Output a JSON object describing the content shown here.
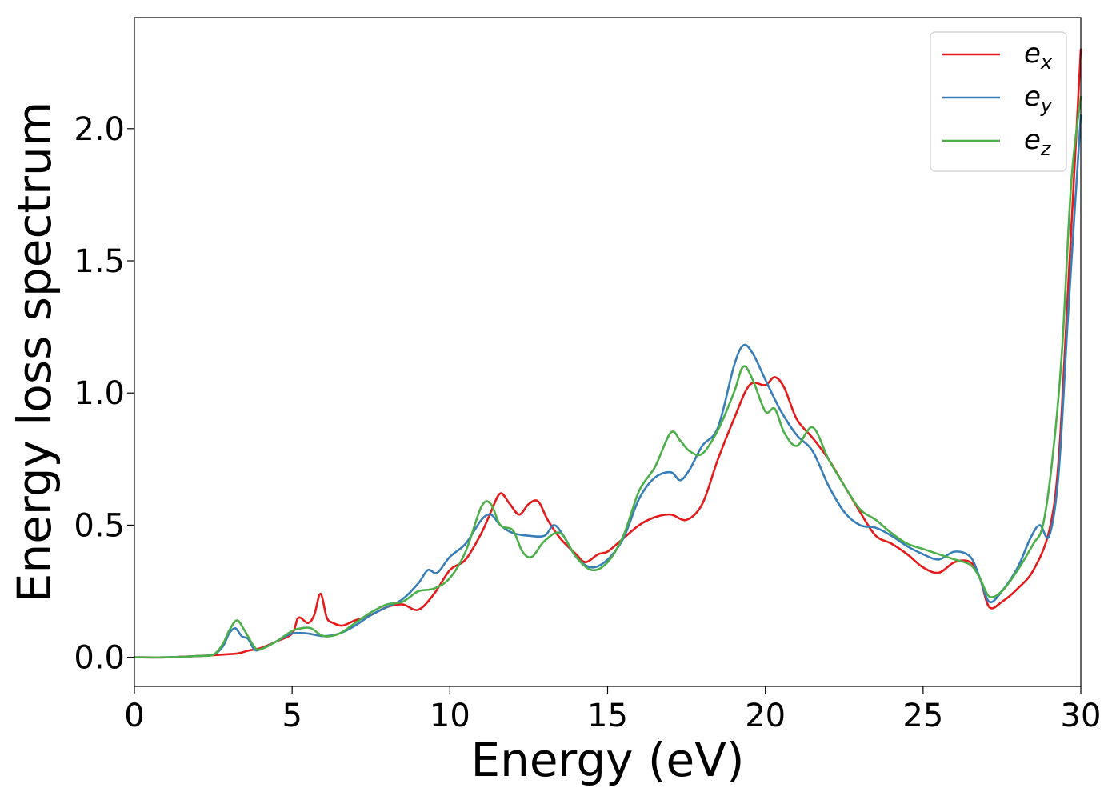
{
  "chart_data": {
    "type": "line",
    "title": "",
    "xlabel": "Energy (eV)",
    "ylabel": "Energy loss spectrum",
    "xlim": [
      0,
      30
    ],
    "ylim": [
      -0.11,
      2.42
    ],
    "xticks": [
      0,
      5,
      10,
      15,
      20,
      25,
      30
    ],
    "xtick_labels": [
      "0",
      "5",
      "10",
      "15",
      "20",
      "25",
      "30"
    ],
    "yticks": [
      0.0,
      0.5,
      1.0,
      1.5,
      2.0
    ],
    "ytick_labels": [
      "0.0",
      "0.5",
      "1.0",
      "1.5",
      "2.0"
    ],
    "grid": false,
    "legend_position": "top-right",
    "series": [
      {
        "name": "e_x",
        "legend_base": "e",
        "legend_sub": "x",
        "color": "#e41a1c",
        "x": [
          0,
          1,
          2,
          2.5,
          3.0,
          3.3,
          3.6,
          4.0,
          4.5,
          5.0,
          5.2,
          5.5,
          5.7,
          5.9,
          6.1,
          6.3,
          6.6,
          7.0,
          7.5,
          8.0,
          8.5,
          9.0,
          9.5,
          10.0,
          10.5,
          11.0,
          11.3,
          11.6,
          11.9,
          12.2,
          12.5,
          12.8,
          13.1,
          13.5,
          14.0,
          14.3,
          14.7,
          15.0,
          15.5,
          16.0,
          16.5,
          17.0,
          17.5,
          18.0,
          18.5,
          19.0,
          19.5,
          20.0,
          20.3,
          20.6,
          21.0,
          21.5,
          22.0,
          22.5,
          23.0,
          23.5,
          24.0,
          24.5,
          25.0,
          25.5,
          26.0,
          26.5,
          26.8,
          27.1,
          27.5,
          28.0,
          28.5,
          29.0,
          29.3,
          29.6,
          30.0
        ],
        "y": [
          0.0,
          0.0,
          0.005,
          0.008,
          0.012,
          0.015,
          0.025,
          0.035,
          0.06,
          0.09,
          0.15,
          0.13,
          0.16,
          0.24,
          0.15,
          0.13,
          0.12,
          0.14,
          0.16,
          0.19,
          0.2,
          0.18,
          0.24,
          0.33,
          0.37,
          0.47,
          0.55,
          0.62,
          0.58,
          0.54,
          0.58,
          0.59,
          0.52,
          0.45,
          0.39,
          0.36,
          0.39,
          0.4,
          0.45,
          0.5,
          0.53,
          0.54,
          0.52,
          0.58,
          0.75,
          0.9,
          1.03,
          1.03,
          1.06,
          1.02,
          0.9,
          0.83,
          0.75,
          0.65,
          0.55,
          0.46,
          0.43,
          0.39,
          0.34,
          0.32,
          0.36,
          0.36,
          0.3,
          0.19,
          0.21,
          0.26,
          0.33,
          0.48,
          0.75,
          1.4,
          2.3
        ]
      },
      {
        "name": "e_y",
        "legend_base": "e",
        "legend_sub": "y",
        "color": "#377eb8",
        "x": [
          0,
          1,
          2,
          2.5,
          2.8,
          3.0,
          3.2,
          3.4,
          3.6,
          3.8,
          4.0,
          4.5,
          5.0,
          5.5,
          6.0,
          6.5,
          7.0,
          7.5,
          8.0,
          8.5,
          9.0,
          9.3,
          9.6,
          10.0,
          10.5,
          11.0,
          11.3,
          11.6,
          12.0,
          12.5,
          13.0,
          13.3,
          13.6,
          14.0,
          14.5,
          15.0,
          15.5,
          16.0,
          16.5,
          17.0,
          17.3,
          17.6,
          18.0,
          18.5,
          19.0,
          19.3,
          19.6,
          20.0,
          20.5,
          21.0,
          21.5,
          22.0,
          22.5,
          23.0,
          23.5,
          24.0,
          24.5,
          25.0,
          25.5,
          26.0,
          26.5,
          26.8,
          27.1,
          27.5,
          28.0,
          28.4,
          28.7,
          29.0,
          29.3,
          29.6,
          30.0
        ],
        "y": [
          0.0,
          0.0,
          0.005,
          0.01,
          0.04,
          0.09,
          0.11,
          0.08,
          0.07,
          0.03,
          0.03,
          0.06,
          0.09,
          0.09,
          0.08,
          0.09,
          0.12,
          0.16,
          0.19,
          0.22,
          0.28,
          0.33,
          0.32,
          0.38,
          0.43,
          0.52,
          0.54,
          0.5,
          0.47,
          0.46,
          0.46,
          0.5,
          0.46,
          0.38,
          0.34,
          0.37,
          0.45,
          0.6,
          0.68,
          0.7,
          0.67,
          0.71,
          0.8,
          0.87,
          1.1,
          1.18,
          1.15,
          1.05,
          0.93,
          0.84,
          0.78,
          0.65,
          0.55,
          0.5,
          0.49,
          0.46,
          0.42,
          0.39,
          0.37,
          0.4,
          0.38,
          0.3,
          0.21,
          0.25,
          0.34,
          0.45,
          0.5,
          0.46,
          0.7,
          1.3,
          2.05
        ]
      },
      {
        "name": "e_z",
        "legend_base": "e",
        "legend_sub": "z",
        "color": "#4daf4a",
        "x": [
          0,
          1,
          2,
          2.5,
          2.8,
          3.0,
          3.25,
          3.5,
          3.8,
          4.0,
          4.5,
          5.0,
          5.3,
          5.6,
          6.0,
          6.5,
          7.0,
          7.5,
          8.0,
          8.5,
          9.0,
          9.5,
          10.0,
          10.5,
          11.0,
          11.3,
          11.6,
          12.0,
          12.3,
          12.6,
          13.0,
          13.5,
          14.0,
          14.5,
          15.0,
          15.5,
          16.0,
          16.5,
          17.0,
          17.3,
          17.6,
          18.0,
          18.5,
          19.0,
          19.3,
          19.6,
          20.0,
          20.3,
          20.6,
          21.0,
          21.5,
          22.0,
          22.5,
          23.0,
          23.5,
          24.0,
          24.5,
          25.0,
          25.5,
          26.0,
          26.5,
          26.8,
          27.1,
          27.5,
          28.0,
          28.5,
          28.8,
          29.1,
          29.4,
          29.7,
          30.0
        ],
        "y": [
          0.0,
          0.0,
          0.005,
          0.01,
          0.05,
          0.1,
          0.14,
          0.1,
          0.04,
          0.03,
          0.06,
          0.1,
          0.11,
          0.11,
          0.08,
          0.09,
          0.13,
          0.17,
          0.2,
          0.21,
          0.25,
          0.26,
          0.3,
          0.4,
          0.57,
          0.58,
          0.5,
          0.48,
          0.4,
          0.38,
          0.44,
          0.47,
          0.38,
          0.33,
          0.36,
          0.46,
          0.63,
          0.72,
          0.85,
          0.82,
          0.78,
          0.77,
          0.86,
          1.0,
          1.1,
          1.05,
          0.93,
          0.94,
          0.85,
          0.8,
          0.87,
          0.75,
          0.65,
          0.56,
          0.52,
          0.47,
          0.43,
          0.41,
          0.39,
          0.37,
          0.35,
          0.3,
          0.23,
          0.25,
          0.33,
          0.43,
          0.5,
          0.75,
          1.15,
          1.8,
          2.12
        ]
      }
    ]
  }
}
